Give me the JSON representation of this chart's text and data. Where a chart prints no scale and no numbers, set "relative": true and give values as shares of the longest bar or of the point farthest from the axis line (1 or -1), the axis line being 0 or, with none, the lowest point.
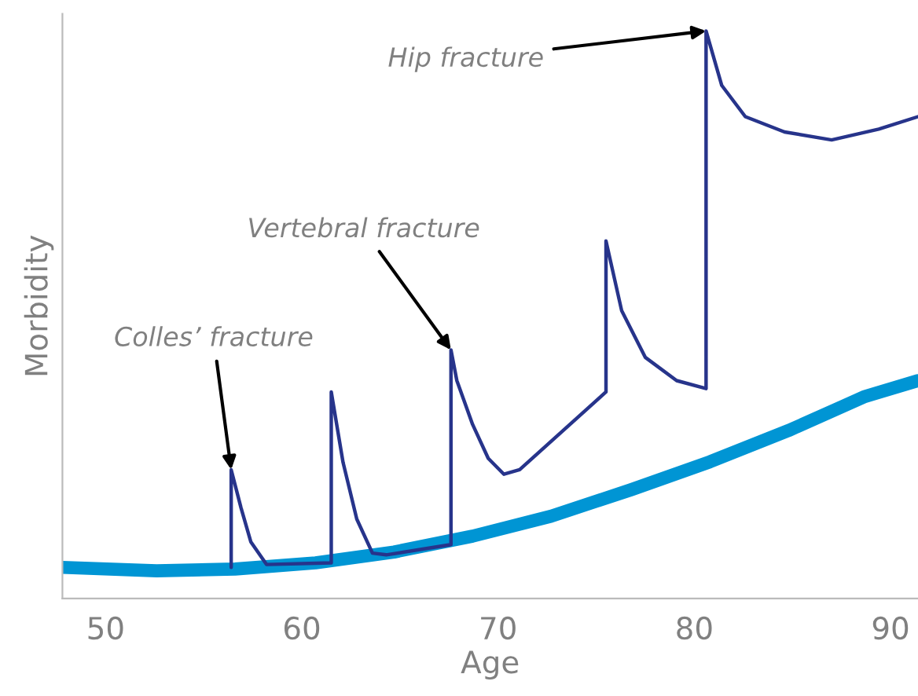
{
  "chart_data": {
    "type": "line",
    "relative": true,
    "xlabel": "Age",
    "ylabel": "Morbidity",
    "xlim": [
      47.8,
      91.4
    ],
    "xticks": [
      50,
      60,
      70,
      80,
      90
    ],
    "grid": false,
    "legend": false,
    "marker": "none",
    "line_style": "solid",
    "series": [
      {
        "color": "#0095d4",
        "x": [
          47.8,
          52.6,
          56.6,
          60.7,
          64.7,
          68.7,
          72.7,
          76.8,
          80.8,
          84.8,
          88.7,
          91.4
        ],
        "values": [
          0.055,
          0.049,
          0.052,
          0.063,
          0.082,
          0.11,
          0.145,
          0.192,
          0.241,
          0.296,
          0.356,
          0.384
        ]
      },
      {
        "color": "#27348b",
        "x": [
          56.4,
          56.4,
          56.9,
          57.4,
          58.2,
          61.5,
          61.5,
          62.1,
          62.8,
          63.6,
          64.3,
          67.6,
          67.6,
          67.9,
          68.7,
          69.5,
          70.3,
          71.1,
          75.5,
          75.5,
          76.3,
          77.5,
          79.1,
          80.6,
          80.6,
          81.4,
          82.6,
          84.6,
          87.0,
          89.4,
          91.4
        ],
        "values": [
          0.055,
          0.227,
          0.16,
          0.1,
          0.06,
          0.063,
          0.364,
          0.24,
          0.14,
          0.08,
          0.077,
          0.095,
          0.438,
          0.384,
          0.307,
          0.247,
          0.219,
          0.227,
          0.364,
          0.63,
          0.507,
          0.425,
          0.384,
          0.37,
          1.0,
          0.904,
          0.849,
          0.822,
          0.808,
          0.827,
          0.849
        ]
      }
    ],
    "annotations": [
      {
        "text": "Colles’ fracture",
        "x": 56.4,
        "y": 0.227
      },
      {
        "text": "Vertebral fracture",
        "x": 67.6,
        "y": 0.438
      },
      {
        "text": "Hip fracture",
        "x": 80.6,
        "y": 1.0
      }
    ]
  }
}
